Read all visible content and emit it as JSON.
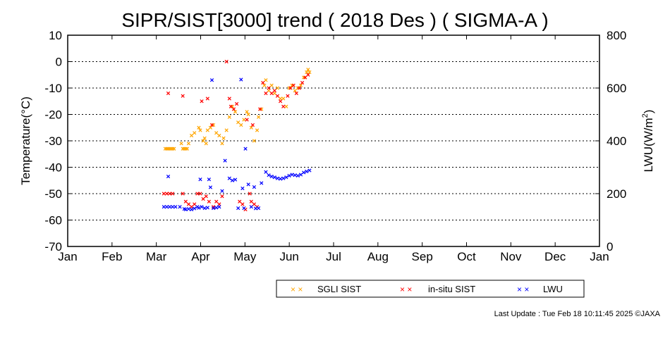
{
  "chart_data": {
    "type": "scatter",
    "title": "SIPR/SIST[3000] trend ( 2018 Des ) ( SIGMA-A )",
    "ylabel": "Temperature(°C)",
    "y2label_main": "LWU(W/m",
    "y2label_sup": "2",
    "y2label_end": ")",
    "ylim": [
      -70,
      10
    ],
    "y2lim": [
      0,
      800
    ],
    "yticks": [
      "10",
      "0",
      "-10",
      "-20",
      "-30",
      "-40",
      "-50",
      "-60",
      "-70"
    ],
    "y2ticks": [
      "800",
      "600",
      "400",
      "200",
      "0"
    ],
    "months": [
      "Jan",
      "Feb",
      "Mar",
      "Apr",
      "May",
      "Jun",
      "Jul",
      "Aug",
      "Sep",
      "Oct",
      "Nov",
      "Dec",
      "Jan"
    ],
    "grid": "horizontal dotted",
    "legend_position": "bottom-right",
    "series": [
      {
        "name": "SGLI SIST",
        "axis": "left",
        "color": "#ffa500",
        "points": [
          [
            "2018-03-09",
            -33
          ],
          [
            "2018-03-10",
            -33
          ],
          [
            "2018-03-11",
            -33
          ],
          [
            "2018-03-12",
            -33
          ],
          [
            "2018-03-13",
            -33
          ],
          [
            "2018-03-14",
            -33
          ],
          [
            "2018-03-15",
            -33
          ],
          [
            "2018-03-20",
            -31
          ],
          [
            "2018-03-21",
            -33
          ],
          [
            "2018-03-22",
            -33
          ],
          [
            "2018-03-23",
            -33
          ],
          [
            "2018-03-24",
            -33
          ],
          [
            "2018-03-25",
            -31
          ],
          [
            "2018-03-27",
            -28
          ],
          [
            "2018-03-29",
            -27
          ],
          [
            "2018-04-01",
            -25
          ],
          [
            "2018-04-02",
            -26
          ],
          [
            "2018-04-04",
            -30
          ],
          [
            "2018-04-05",
            -29
          ],
          [
            "2018-04-06",
            -31
          ],
          [
            "2018-04-07",
            -26
          ],
          [
            "2018-04-09",
            -25
          ],
          [
            "2018-04-11",
            -24
          ],
          [
            "2018-04-13",
            -27
          ],
          [
            "2018-04-15",
            -28
          ],
          [
            "2018-04-17",
            -31
          ],
          [
            "2018-04-18",
            -29
          ],
          [
            "2018-04-20",
            -26
          ],
          [
            "2018-04-22",
            -21
          ],
          [
            "2018-04-24",
            -17
          ],
          [
            "2018-04-26",
            -19
          ],
          [
            "2018-04-28",
            -23
          ],
          [
            "2018-04-30",
            -24
          ],
          [
            "2018-05-02",
            -22
          ],
          [
            "2018-05-04",
            -19
          ],
          [
            "2018-05-05",
            -20
          ],
          [
            "2018-05-07",
            -25
          ],
          [
            "2018-05-09",
            -30
          ],
          [
            "2018-05-11",
            -26
          ],
          [
            "2018-05-12",
            -21
          ],
          [
            "2018-05-14",
            -18
          ],
          [
            "2018-05-16",
            -9
          ],
          [
            "2018-05-17",
            -7
          ],
          [
            "2018-05-19",
            -11
          ],
          [
            "2018-05-21",
            -9
          ],
          [
            "2018-05-23",
            -12
          ],
          [
            "2018-05-25",
            -10
          ],
          [
            "2018-05-27",
            -14
          ],
          [
            "2018-05-29",
            -14
          ],
          [
            "2018-05-31",
            -17
          ],
          [
            "2018-06-02",
            -10
          ],
          [
            "2018-06-04",
            -9
          ],
          [
            "2018-06-06",
            -11
          ],
          [
            "2018-06-08",
            -10
          ],
          [
            "2018-06-10",
            -9
          ],
          [
            "2018-06-12",
            -6
          ],
          [
            "2018-06-14",
            -4
          ],
          [
            "2018-06-15",
            -3
          ],
          [
            "2018-06-16",
            -4
          ]
        ]
      },
      {
        "name": "in-situ SIST",
        "axis": "left",
        "color": "#ff0000",
        "points": [
          [
            "2018-03-08",
            -50
          ],
          [
            "2018-03-10",
            -50
          ],
          [
            "2018-03-12",
            -50
          ],
          [
            "2018-03-14",
            -50
          ],
          [
            "2018-03-11",
            -12
          ],
          [
            "2018-03-21",
            -50
          ],
          [
            "2018-03-21",
            -13
          ],
          [
            "2018-03-23",
            -53
          ],
          [
            "2018-03-25",
            -54
          ],
          [
            "2018-03-27",
            -55
          ],
          [
            "2018-03-29",
            -54
          ],
          [
            "2018-03-31",
            -50
          ],
          [
            "2018-04-02",
            -50
          ],
          [
            "2018-04-03",
            -15
          ],
          [
            "2018-04-04",
            -52
          ],
          [
            "2018-04-06",
            -51
          ],
          [
            "2018-04-07",
            -14
          ],
          [
            "2018-04-08",
            -53
          ],
          [
            "2018-04-10",
            -24
          ],
          [
            "2018-04-11",
            -55
          ],
          [
            "2018-04-13",
            -53
          ],
          [
            "2018-04-15",
            -54
          ],
          [
            "2018-04-17",
            -51
          ],
          [
            "2018-04-20",
            0
          ],
          [
            "2018-04-22",
            -14
          ],
          [
            "2018-04-23",
            -17
          ],
          [
            "2018-04-25",
            -18
          ],
          [
            "2018-04-27",
            -16
          ],
          [
            "2018-04-29",
            -53
          ],
          [
            "2018-05-01",
            -54
          ],
          [
            "2018-05-03",
            -56
          ],
          [
            "2018-05-04",
            -22
          ],
          [
            "2018-05-06",
            -50
          ],
          [
            "2018-05-07",
            -53
          ],
          [
            "2018-05-08",
            -24
          ],
          [
            "2018-05-09",
            -54
          ],
          [
            "2018-05-11",
            -55
          ],
          [
            "2018-05-13",
            -18
          ],
          [
            "2018-05-15",
            -8
          ],
          [
            "2018-05-17",
            -12
          ],
          [
            "2018-05-19",
            -10
          ],
          [
            "2018-05-21",
            -12
          ],
          [
            "2018-05-23",
            -11
          ],
          [
            "2018-05-25",
            -13
          ],
          [
            "2018-05-27",
            -15
          ],
          [
            "2018-05-29",
            -17
          ],
          [
            "2018-06-01",
            -13
          ],
          [
            "2018-06-03",
            -10
          ],
          [
            "2018-06-05",
            -9
          ],
          [
            "2018-06-07",
            -12
          ],
          [
            "2018-06-09",
            -10
          ],
          [
            "2018-06-11",
            -8
          ],
          [
            "2018-06-13",
            -6
          ],
          [
            "2018-06-15",
            -5
          ]
        ]
      },
      {
        "name": "LWU",
        "axis": "right",
        "color": "#0000ff",
        "points": [
          [
            "2018-03-08",
            150
          ],
          [
            "2018-03-10",
            150
          ],
          [
            "2018-03-12",
            150
          ],
          [
            "2018-03-14",
            150
          ],
          [
            "2018-03-16",
            150
          ],
          [
            "2018-03-19",
            150
          ],
          [
            "2018-03-11",
            265
          ],
          [
            "2018-03-22",
            142
          ],
          [
            "2018-03-23",
            140
          ],
          [
            "2018-03-25",
            142
          ],
          [
            "2018-03-27",
            140
          ],
          [
            "2018-03-29",
            144
          ],
          [
            "2018-03-31",
            150
          ],
          [
            "2018-04-01",
            146
          ],
          [
            "2018-04-02",
            254
          ],
          [
            "2018-04-03",
            150
          ],
          [
            "2018-04-05",
            145
          ],
          [
            "2018-04-07",
            147
          ],
          [
            "2018-04-08",
            254
          ],
          [
            "2018-04-09",
            224
          ],
          [
            "2018-04-11",
            145
          ],
          [
            "2018-04-13",
            147
          ],
          [
            "2018-04-15",
            150
          ],
          [
            "2018-04-17",
            210
          ],
          [
            "2018-04-19",
            325
          ],
          [
            "2018-04-10",
            630
          ],
          [
            "2018-04-22",
            258
          ],
          [
            "2018-04-24",
            250
          ],
          [
            "2018-04-26",
            253
          ],
          [
            "2018-04-28",
            145
          ],
          [
            "2018-04-30",
            632
          ],
          [
            "2018-05-01",
            220
          ],
          [
            "2018-05-02",
            145
          ],
          [
            "2018-05-03",
            370
          ],
          [
            "2018-05-05",
            235
          ],
          [
            "2018-05-07",
            150
          ],
          [
            "2018-05-09",
            225
          ],
          [
            "2018-05-10",
            144
          ],
          [
            "2018-05-12",
            145
          ],
          [
            "2018-05-14",
            240
          ],
          [
            "2018-05-17",
            282
          ],
          [
            "2018-05-19",
            270
          ],
          [
            "2018-05-21",
            265
          ],
          [
            "2018-05-23",
            262
          ],
          [
            "2018-05-25",
            258
          ],
          [
            "2018-05-27",
            256
          ],
          [
            "2018-05-29",
            258
          ],
          [
            "2018-05-31",
            262
          ],
          [
            "2018-06-02",
            268
          ],
          [
            "2018-06-04",
            272
          ],
          [
            "2018-06-06",
            270
          ],
          [
            "2018-06-08",
            268
          ],
          [
            "2018-06-10",
            272
          ],
          [
            "2018-06-12",
            280
          ],
          [
            "2018-06-14",
            284
          ],
          [
            "2018-06-16",
            288
          ]
        ]
      }
    ]
  },
  "footer": {
    "last_update": "Last Update : Tue Feb 18 10:11:45 2025  ©JAXA"
  }
}
